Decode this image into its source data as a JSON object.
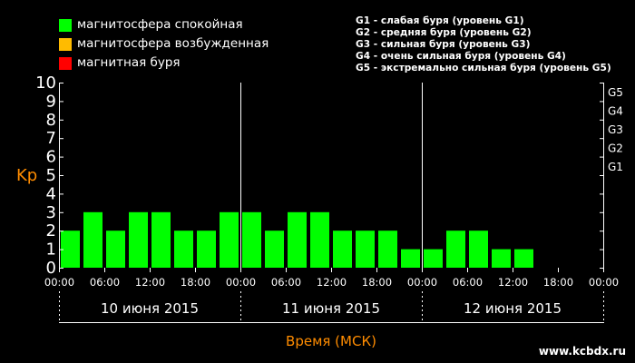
{
  "legend": [
    {
      "label": "магнитосфера спокойная",
      "color": "#00ff00"
    },
    {
      "label": "магнитосфера возбужденная",
      "color": "#ffbb00"
    },
    {
      "label": "магнитная буря",
      "color": "#ff0000"
    }
  ],
  "storm_levels": [
    "G1 - слабая буря (уровень G1)",
    "G2 - средняя буря (уровень G2)",
    "G3 - сильная буря (уровень G3)",
    "G4 - очень сильная буря (уровень G4)",
    "G5 - экстремально сильная буря (уровень G5)"
  ],
  "watermark": "www.kcbdx.ru",
  "colors": {
    "background": "#000000",
    "bar": "#00ff00",
    "accent": "#ff8c00",
    "axis": "#ffffff"
  },
  "chart_data": {
    "type": "bar",
    "ylabel": "Kp",
    "xlabel": "Время (МСК)",
    "ylim": [
      0,
      10
    ],
    "yticks": [
      0,
      1,
      2,
      3,
      4,
      5,
      6,
      7,
      8,
      9,
      10
    ],
    "g_ticks": [
      {
        "label": "G1",
        "kp": 5
      },
      {
        "label": "G2",
        "kp": 6
      },
      {
        "label": "G3",
        "kp": 7
      },
      {
        "label": "G4",
        "kp": 8
      },
      {
        "label": "G5",
        "kp": 9
      }
    ],
    "x_tick_labels": [
      "00:00",
      "06:00",
      "12:00",
      "18:00",
      "00:00",
      "06:00",
      "12:00",
      "18:00",
      "00:00",
      "06:00",
      "12:00",
      "18:00",
      "00:00"
    ],
    "days": [
      "10 июня 2015",
      "11 июня 2015",
      "12 июня 2015"
    ],
    "interval_hours": 3,
    "values": [
      2,
      3,
      2,
      3,
      3,
      2,
      2,
      3,
      3,
      2,
      3,
      3,
      2,
      2,
      2,
      1,
      1,
      2,
      2,
      1,
      1
    ],
    "grid": false
  }
}
